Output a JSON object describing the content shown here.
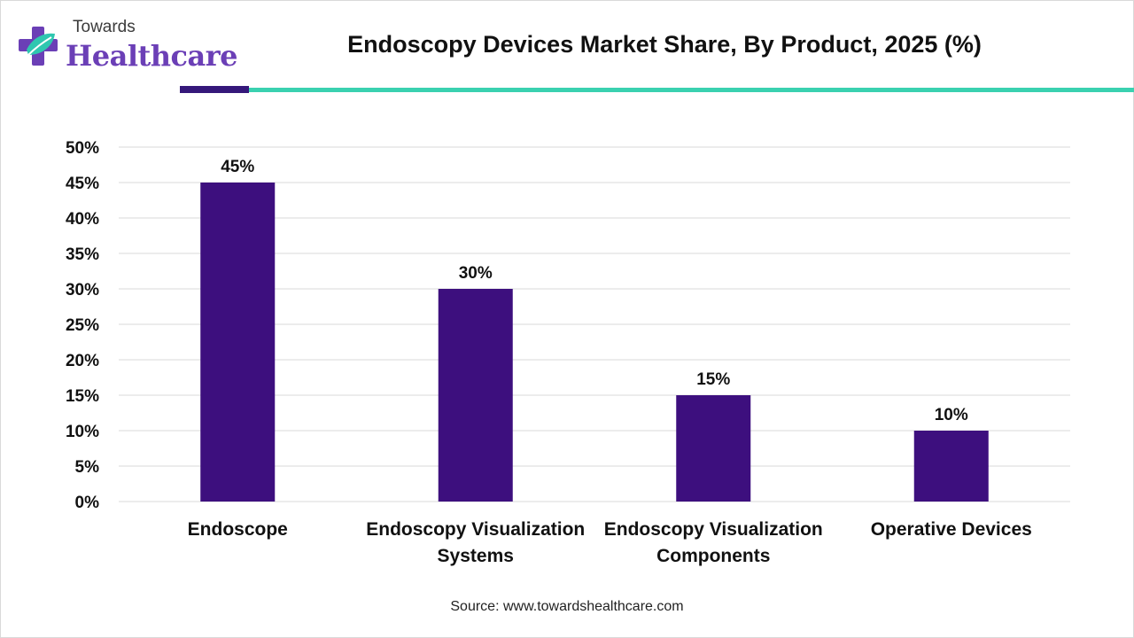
{
  "logo": {
    "top_text": "Towards",
    "main_text": "Healthcare",
    "icon": "cross-plus-leaf-icon",
    "colors": {
      "purple": "#6b3fb6",
      "teal": "#2fc7b0"
    }
  },
  "title": "Endoscopy Devices Market Share, By Product, 2025 (%)",
  "colors": {
    "bar": "#3d0f7e",
    "accent_dark": "#35187a",
    "accent_teal": "#3ad1b0",
    "grid": "#d9d9d9"
  },
  "chart_data": {
    "type": "bar",
    "title": "Endoscopy Devices Market Share, By Product, 2025 (%)",
    "categories": [
      [
        "Endoscope"
      ],
      [
        "Endoscopy Visualization",
        "Systems"
      ],
      [
        "Endoscopy Visualization",
        "Components"
      ],
      [
        "Operative Devices"
      ]
    ],
    "values": [
      45,
      30,
      15,
      10
    ],
    "data_labels": [
      "45%",
      "30%",
      "15%",
      "10%"
    ],
    "ylim": [
      0,
      50
    ],
    "y_ticks": [
      0,
      5,
      10,
      15,
      20,
      25,
      30,
      35,
      40,
      45,
      50
    ],
    "y_tick_labels": [
      "0%",
      "5%",
      "10%",
      "15%",
      "20%",
      "25%",
      "30%",
      "35%",
      "40%",
      "45%",
      "50%"
    ],
    "grid": true,
    "legend": "none"
  },
  "source": "Source: www.towardshealthcare.com"
}
